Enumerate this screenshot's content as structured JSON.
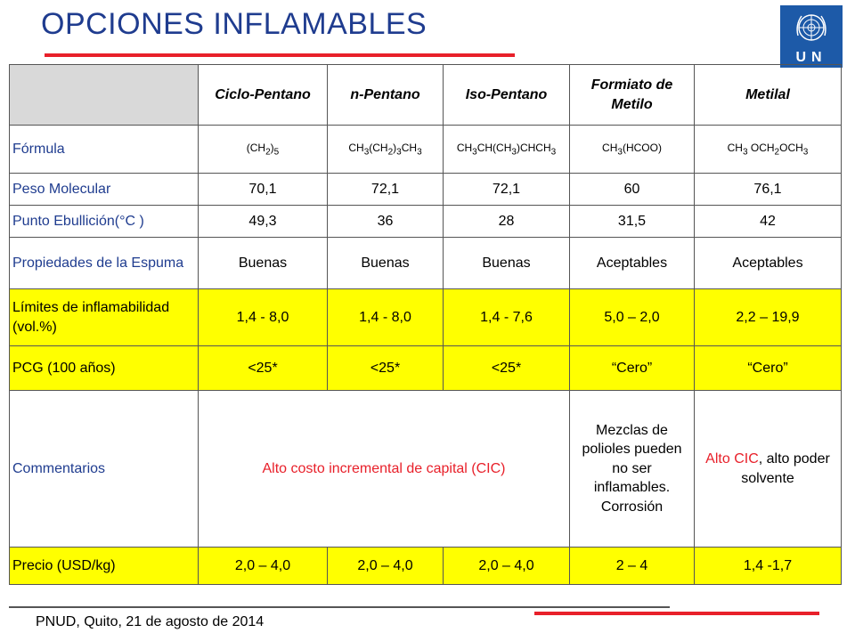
{
  "slide": {
    "title": "OPCIONES INFLAMABLES",
    "footer": "PNUD, Quito, 21 de agosto de 2014",
    "logo_text": "UN",
    "colors": {
      "title": "#1f3c8f",
      "accent_red": "#e8202a",
      "highlight": "#ffff00",
      "logo_bg": "#1d5aa8"
    }
  },
  "table": {
    "headers": [
      "",
      "Ciclo-Pentano",
      "n-Pentano",
      "Iso-Pentano",
      "Formiato de Metilo",
      "Metilal"
    ],
    "formula": {
      "label": "Fórmula",
      "values": [
        "(CH2)5",
        "CH3(CH2)3CH3",
        "CH3CH(CH3)CHCH3",
        "CH3(HCOO)",
        "CH3 OCH2OCH3"
      ]
    },
    "molecular_weight": {
      "label": "Peso Molecular",
      "values": [
        "70,1",
        "72,1",
        "72,1",
        "60",
        "76,1"
      ]
    },
    "boiling_point": {
      "label": "Punto Ebullición(°C )",
      "values": [
        "49,3",
        "36",
        "28",
        "31,5",
        "42"
      ]
    },
    "foam": {
      "label": "Propiedades de la Espuma",
      "values": [
        "Buenas",
        "Buenas",
        "Buenas",
        "Aceptables",
        "Aceptables"
      ]
    },
    "flammability": {
      "label": "Límites de inflamabilidad (vol.%)",
      "values": [
        "1,4 - 8,0",
        "1,4 - 8,0",
        "1,4 - 7,6",
        "5,0 – 2,0",
        "2,2 – 19,9"
      ]
    },
    "gwp": {
      "label": "PCG (100 años)",
      "values": [
        "<25*",
        "<25*",
        "<25*",
        "“Cero”",
        "“Cero”"
      ]
    },
    "comments": {
      "label": "Commentarios",
      "merged": "Alto costo incremental de capital (CIC)",
      "formiato": "Mezclas de polioles pueden no ser inflamables. Corrosión",
      "metilal_red": "Alto CIC",
      "metilal_rest": ", alto poder solvente"
    },
    "price": {
      "label": "Precio (USD/kg)",
      "values": [
        "2,0 – 4,0",
        "2,0 – 4,0",
        "2,0 – 4,0",
        "2 – 4",
        "1,4 -1,7"
      ]
    }
  }
}
